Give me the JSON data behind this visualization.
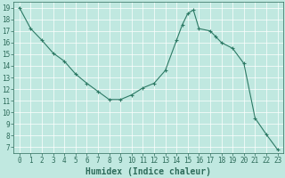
{
  "x": [
    0,
    1,
    2,
    3,
    4,
    5,
    6,
    7,
    8,
    9,
    10,
    11,
    12,
    13,
    14,
    14.5,
    15,
    15.5,
    16,
    17,
    17.5,
    18,
    19,
    20,
    21,
    22,
    23
  ],
  "y": [
    19.0,
    17.2,
    16.2,
    15.1,
    14.4,
    13.3,
    12.5,
    11.8,
    11.1,
    11.1,
    11.5,
    12.1,
    12.5,
    13.6,
    16.2,
    17.5,
    18.5,
    18.8,
    17.2,
    17.0,
    16.5,
    16.0,
    15.5,
    14.2,
    9.5,
    8.1,
    6.8
  ],
  "xlabel": "Humidex (Indice chaleur)",
  "xlim": [
    -0.5,
    23.5
  ],
  "ylim": [
    6.5,
    19.5
  ],
  "yticks": [
    7,
    8,
    9,
    10,
    11,
    12,
    13,
    14,
    15,
    16,
    17,
    18,
    19
  ],
  "xticks": [
    0,
    1,
    2,
    3,
    4,
    5,
    6,
    7,
    8,
    9,
    10,
    11,
    12,
    13,
    14,
    15,
    16,
    17,
    18,
    19,
    20,
    21,
    22,
    23
  ],
  "line_color": "#2d7a65",
  "bg_color": "#c0e8e0",
  "grid_color": "#ffffff",
  "text_color": "#2d6b5a",
  "tick_label_fontsize": 5.5,
  "xlabel_fontsize": 7.0
}
